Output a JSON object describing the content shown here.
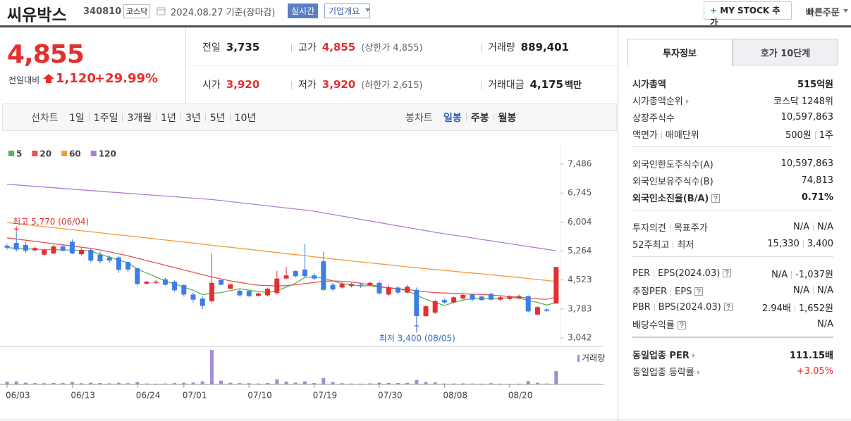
{
  "header": {
    "name": "씨유박스",
    "code": "340810",
    "market": "코스닥",
    "date": "2024.08.27 기준(장마감)",
    "realtime": "실시간",
    "overview": "기업개요",
    "my_stock": "MY STOCK 추가",
    "quick_order": "빠른주문"
  },
  "price": {
    "current": "4,855",
    "change_label": "전일대비",
    "change": "1,120",
    "change_rate": "+29.99%"
  },
  "quote": [
    [
      {
        "label": "전일",
        "value": "3,735"
      },
      {
        "label": "고가",
        "value": "4,855",
        "color": "#e62e2e",
        "sub": "(상한가 4,855)"
      },
      {
        "label": "거래량",
        "value": "889,401"
      }
    ],
    [
      {
        "label": "시가",
        "value": "3,920",
        "color": "#e62e2e"
      },
      {
        "label": "저가",
        "value": "3,920",
        "color": "#e62e2e",
        "sub": "(하한가 2,615)"
      },
      {
        "label": "거래대금",
        "value": "4,175",
        "unit": "백만"
      }
    ]
  ],
  "chart_tabs": {
    "line_label": "선차트",
    "periods": [
      "1일",
      "1주일",
      "3개월",
      "1년",
      "3년",
      "5년",
      "10년"
    ],
    "candle_label": "봉차트",
    "candle_periods": [
      "일봉",
      "주봉",
      "월봉"
    ],
    "candle_active_index": 0
  },
  "chart_data": {
    "type": "candlestick",
    "categories": [
      "06/03",
      null,
      null,
      null,
      null,
      null,
      null,
      "06/13",
      null,
      null,
      null,
      null,
      null,
      null,
      "06/24",
      null,
      null,
      null,
      null,
      "07/01",
      null,
      null,
      null,
      null,
      null,
      null,
      "07/10",
      null,
      null,
      null,
      null,
      null,
      null,
      "07/19",
      null,
      null,
      null,
      null,
      null,
      null,
      "07/30",
      null,
      null,
      null,
      null,
      null,
      null,
      "08/08",
      null,
      null,
      null,
      null,
      null,
      null,
      "08/20",
      null,
      null,
      null,
      null,
      null
    ],
    "open": [
      5400,
      5470,
      5420,
      5280,
      5170,
      5200,
      5380,
      5500,
      5180,
      5290,
      5170,
      5100,
      5100,
      4980,
      4820,
      4430,
      4450,
      4540,
      4480,
      4390,
      4150,
      4050,
      3980,
      4520,
      4300,
      4250,
      4240,
      4120,
      4130,
      4190,
      4560,
      4750,
      4790,
      4640,
      5000,
      4400,
      4330,
      4370,
      4400,
      4390,
      4450,
      4150,
      4330,
      4200,
      4270,
      3600,
      3690,
      4010,
      3950,
      4050,
      4150,
      4100,
      4170,
      4020,
      4040,
      4060,
      4110,
      3640,
      3770,
      3920
    ],
    "high": [
      5450,
      5770,
      5500,
      5380,
      5320,
      5420,
      5450,
      5560,
      5340,
      5320,
      5250,
      5150,
      5130,
      5000,
      4850,
      4500,
      4520,
      4580,
      4520,
      4420,
      4200,
      4100,
      5200,
      4560,
      4430,
      4290,
      4260,
      4200,
      4330,
      4760,
      4860,
      4780,
      5450,
      4700,
      5250,
      4450,
      4460,
      4450,
      4450,
      4480,
      4480,
      4400,
      4370,
      4400,
      4330,
      3880,
      4020,
      4050,
      4100,
      4180,
      4180,
      4130,
      4200,
      4120,
      4130,
      4150,
      4130,
      3850,
      3800,
      4855
    ],
    "low": [
      5300,
      5250,
      5220,
      5250,
      5150,
      5180,
      5250,
      5180,
      5150,
      4980,
      4950,
      4950,
      4700,
      4720,
      4380,
      4400,
      4420,
      4380,
      4220,
      4100,
      3950,
      3780,
      3950,
      4380,
      4280,
      4100,
      4090,
      4100,
      4100,
      4150,
      4540,
      4580,
      4580,
      4520,
      4250,
      4250,
      4300,
      4330,
      4320,
      4360,
      4150,
      4120,
      4150,
      4180,
      3400,
      3580,
      3650,
      3920,
      3920,
      4020,
      3980,
      3980,
      4000,
      3990,
      4010,
      4030,
      3700,
      3620,
      3700,
      3920
    ],
    "close": [
      5350,
      5300,
      5270,
      5340,
      5290,
      5380,
      5270,
      5200,
      5290,
      5020,
      5000,
      5020,
      4780,
      4790,
      4420,
      4480,
      4480,
      4400,
      4260,
      4150,
      4020,
      3860,
      4450,
      4400,
      4410,
      4130,
      4110,
      4180,
      4300,
      4560,
      4640,
      4620,
      4620,
      4560,
      4270,
      4280,
      4420,
      4420,
      4380,
      4450,
      4180,
      4330,
      4200,
      4350,
      3600,
      3850,
      3980,
      3950,
      4080,
      4140,
      4020,
      4010,
      4020,
      4080,
      4100,
      4110,
      3720,
      3830,
      3735,
      4855
    ],
    "up_color": "#e62e2e",
    "down_color": "#3a7ee6",
    "series": [
      {
        "name": "5",
        "color": "#55b452",
        "values": [
          5350,
          5330,
          5320,
          5310,
          5300,
          5300,
          5290,
          5290,
          5280,
          5260,
          5180,
          5110,
          5030,
          4960,
          4800,
          4700,
          4600,
          4500,
          4420,
          4340,
          4260,
          4150,
          4180,
          4200,
          4250,
          4300,
          4260,
          4230,
          4200,
          4250,
          4340,
          4440,
          4590,
          4600,
          4570,
          4500,
          4430,
          4400,
          4370,
          4380,
          4340,
          4330,
          4300,
          4250,
          4130,
          4030,
          3950,
          3870,
          3950,
          4010,
          4050,
          4040,
          4040,
          4050,
          4070,
          4060,
          4000,
          3950,
          3880,
          3950
        ]
      },
      {
        "name": "20",
        "color": "#ec4f4f",
        "values": [
          5600,
          5570,
          5540,
          5510,
          5480,
          5450,
          5420,
          5390,
          5360,
          5330,
          5290,
          5240,
          5190,
          5140,
          5080,
          5020,
          4960,
          4900,
          4840,
          4780,
          4720,
          4660,
          4600,
          4550,
          4500,
          4460,
          4420,
          4390,
          4380,
          4370,
          4380,
          4400,
          4430,
          4460,
          4490,
          4500,
          4490,
          4470,
          4440,
          4400,
          4360,
          4320,
          4300,
          4280,
          4250,
          4220,
          4200,
          4190,
          4180,
          4170,
          4160,
          4150,
          4140,
          4120,
          4100,
          4080,
          4060,
          4040,
          4030,
          4080
        ]
      },
      {
        "name": "60",
        "color": "#f39c3c",
        "values": [
          5990,
          5965,
          5940,
          5910,
          5885,
          5860,
          5835,
          5810,
          5780,
          5755,
          5730,
          5700,
          5675,
          5650,
          5625,
          5600,
          5570,
          5545,
          5520,
          5490,
          5465,
          5440,
          5410,
          5385,
          5360,
          5330,
          5305,
          5280,
          5250,
          5225,
          5195,
          5170,
          5145,
          5115,
          5090,
          5060,
          5035,
          5010,
          4985,
          4960,
          4935,
          4910,
          4885,
          4860,
          4835,
          4810,
          4790,
          4770,
          4745,
          4720,
          4700,
          4680,
          4655,
          4630,
          4610,
          4585,
          4560,
          4535,
          4510,
          4485
        ]
      },
      {
        "name": "120",
        "color": "#b07ddb",
        "values": [
          6970,
          6952,
          6934,
          6916,
          6898,
          6880,
          6862,
          6844,
          6826,
          6808,
          6790,
          6772,
          6754,
          6736,
          6720,
          6702,
          6685,
          6667,
          6650,
          6632,
          6615,
          6597,
          6580,
          6553,
          6526,
          6499,
          6472,
          6445,
          6418,
          6391,
          6364,
          6337,
          6310,
          6280,
          6238,
          6197,
          6155,
          6114,
          6072,
          6031,
          5989,
          5948,
          5906,
          5865,
          5823,
          5782,
          5740,
          5704,
          5668,
          5632,
          5596,
          5559,
          5523,
          5487,
          5451,
          5415,
          5379,
          5342,
          5306,
          5270
        ]
      }
    ],
    "ylim": [
      2826,
      7810
    ],
    "yticks": [
      {
        "value": 7486,
        "label": "7,486"
      },
      {
        "value": 6745,
        "label": "6,745"
      },
      {
        "value": 6004,
        "label": "6,004"
      },
      {
        "value": 5264,
        "label": "5,264"
      },
      {
        "value": 4523,
        "label": "4,523"
      },
      {
        "value": 3783,
        "label": "3,783"
      },
      {
        "value": 3042,
        "label": "3,042"
      }
    ],
    "annotations": {
      "high": "최고 5,770 (06/04)",
      "low": "최저 3,400 (08/05)"
    },
    "volume": {
      "name": "거래량",
      "color": "#a38bd6",
      "ylim": [
        0,
        2400000
      ],
      "values": [
        180000,
        200000,
        120000,
        90000,
        80000,
        100000,
        90000,
        160000,
        80000,
        120000,
        90000,
        70000,
        110000,
        80000,
        150000,
        60000,
        50000,
        60000,
        90000,
        110000,
        120000,
        200000,
        2300000,
        250000,
        110000,
        90000,
        80000,
        60000,
        90000,
        330000,
        180000,
        120000,
        200000,
        90000,
        420000,
        150000,
        80000,
        60000,
        50000,
        70000,
        120000,
        100000,
        90000,
        100000,
        300000,
        150000,
        130000,
        60000,
        60000,
        70000,
        60000,
        50000,
        80000,
        50000,
        40000,
        50000,
        220000,
        110000,
        60000,
        889401
      ]
    }
  },
  "invest": {
    "tabs": [
      "투자정보",
      "호가 10단계"
    ],
    "active_tab": 0,
    "groups": [
      [
        {
          "label": "시가총액",
          "value": "515억원",
          "bold": true
        },
        {
          "label": "시가총액순위",
          "link": true,
          "value": "코스닥 1248위"
        },
        {
          "label": "상장주식수",
          "value": "10,597,863"
        },
        {
          "label": [
            "액면가",
            "매매단위"
          ],
          "value": [
            "500원",
            "1주"
          ]
        }
      ],
      [
        {
          "label": "외국인한도주식수(A)",
          "value": "10,597,863"
        },
        {
          "label": "외국인보유주식수(B)",
          "value": "74,813"
        },
        {
          "label": "외국인소진율(B/A)",
          "help": true,
          "value": "0.71%",
          "bold": true
        }
      ],
      [
        {
          "label": [
            "투자의견",
            "목표주가"
          ],
          "value": [
            "N/A",
            "N/A"
          ]
        },
        {
          "label": [
            "52주최고",
            "최저"
          ],
          "value": [
            "15,330",
            "3,400"
          ]
        }
      ],
      [
        {
          "label": [
            "PER",
            "EPS(2024.03)"
          ],
          "help": true,
          "value": [
            "N/A",
            "-1,037원"
          ]
        },
        {
          "label": [
            "추정PER",
            "EPS"
          ],
          "help": true,
          "value": [
            "N/A",
            "N/A"
          ]
        },
        {
          "label": [
            "PBR",
            "BPS(2024.03)"
          ],
          "help": true,
          "value": [
            "2.94배",
            "1,652원"
          ]
        },
        {
          "label": "배당수익률",
          "help": true,
          "value": "N/A"
        }
      ],
      [
        {
          "label": "동일업종 PER",
          "link": true,
          "value": "111.15배",
          "bold": true
        },
        {
          "label": "동일업종 등락률",
          "link": true,
          "value": "+3.05%",
          "color": "#e62e2e"
        }
      ]
    ]
  }
}
